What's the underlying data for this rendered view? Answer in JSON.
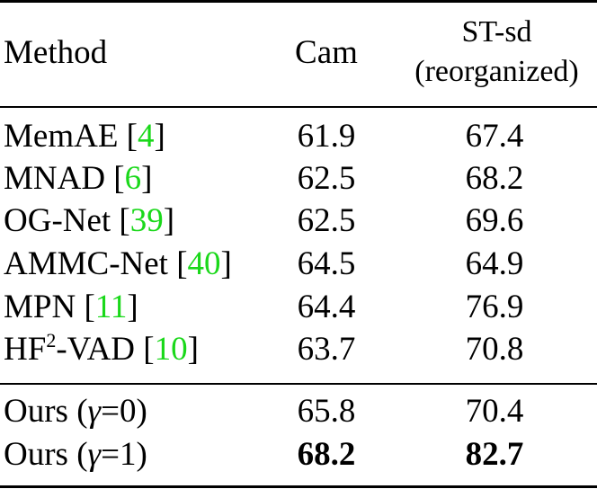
{
  "header": {
    "method": "Method",
    "cam": "Cam",
    "st_line1": "ST-sd",
    "st_line2": "(reorganized)"
  },
  "rows": [
    {
      "name": "MemAE [",
      "ref": "4",
      "close": "]",
      "cam": "61.9",
      "st": "67.4"
    },
    {
      "name": "MNAD [",
      "ref": "6",
      "close": "]",
      "cam": "62.5",
      "st": "68.2"
    },
    {
      "name": "OG-Net [",
      "ref": "39",
      "close": "]",
      "cam": "62.5",
      "st": "69.6"
    },
    {
      "name": "AMMC-Net [",
      "ref": "40",
      "close": "]",
      "cam": "64.5",
      "st": "64.9"
    },
    {
      "name": "MPN [",
      "ref": "11",
      "close": "]",
      "cam": "64.4",
      "st": "76.9"
    },
    {
      "name_pre": "HF",
      "sup": "2",
      "name_post": "-VAD [",
      "ref": "10",
      "close": "]",
      "cam": "63.7",
      "st": "70.8"
    }
  ],
  "ours": [
    {
      "prefix": "Ours (",
      "gamma": "γ",
      "suffix": "=0)",
      "cam": "65.8",
      "st": "70.4"
    },
    {
      "prefix": "Ours (",
      "gamma": "γ",
      "suffix": "=1)",
      "cam": "68.2",
      "st": "82.7"
    }
  ],
  "colors": {
    "reference_link": "#1ad81a",
    "text": "#000000"
  }
}
